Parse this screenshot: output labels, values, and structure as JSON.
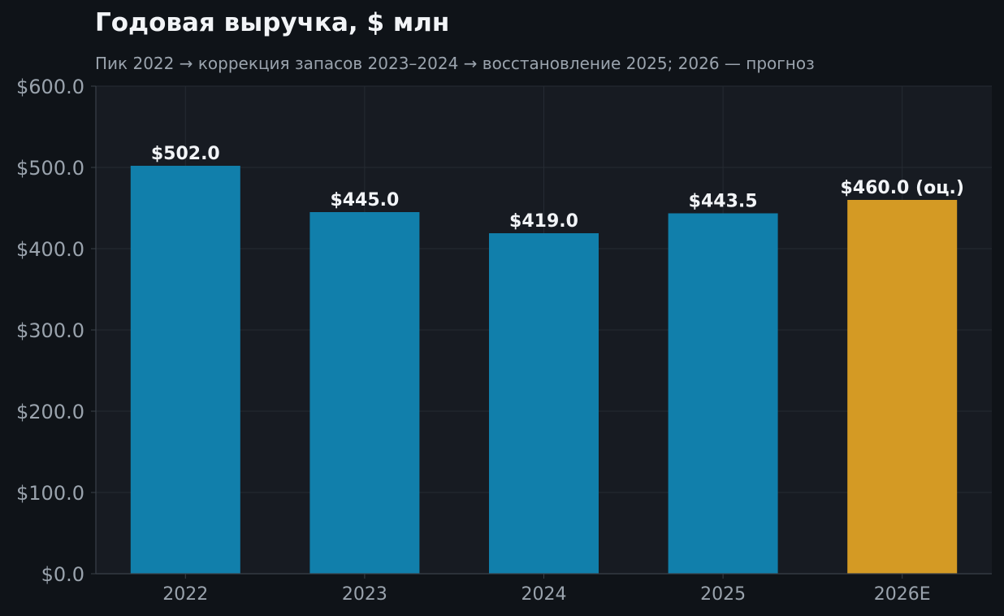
{
  "chart_data": {
    "type": "bar",
    "title": "Годовая выручка, $ млн",
    "subtitle": "Пик 2022 → коррекция запасов 2023–2024 → восстановление 2025; 2026 — прогноз",
    "xlabel": "",
    "ylabel": "",
    "categories": [
      "2022",
      "2023",
      "2024",
      "2025",
      "2026E"
    ],
    "values": [
      502.0,
      445.0,
      419.0,
      443.5,
      460.0
    ],
    "value_labels": [
      "$502.0",
      "$445.0",
      "$419.0",
      "$443.5",
      "$460.0 (оц.)"
    ],
    "ylim": [
      0,
      600
    ],
    "yticks": [
      0,
      100,
      200,
      300,
      400,
      500,
      600
    ],
    "ytick_labels": [
      "$0.0",
      "$100.0",
      "$200.0",
      "$300.0",
      "$400.0",
      "$500.0",
      "$600.0"
    ],
    "grid": true,
    "colors": {
      "actual": "#117fab",
      "forecast": "#d49a24",
      "background": "#0f1318",
      "plot_background": "#171b22",
      "grid": "#262b33",
      "text": "#f2f4f7",
      "muted_text": "#9aa3ad"
    },
    "forecast_categories": [
      "2026E"
    ]
  }
}
